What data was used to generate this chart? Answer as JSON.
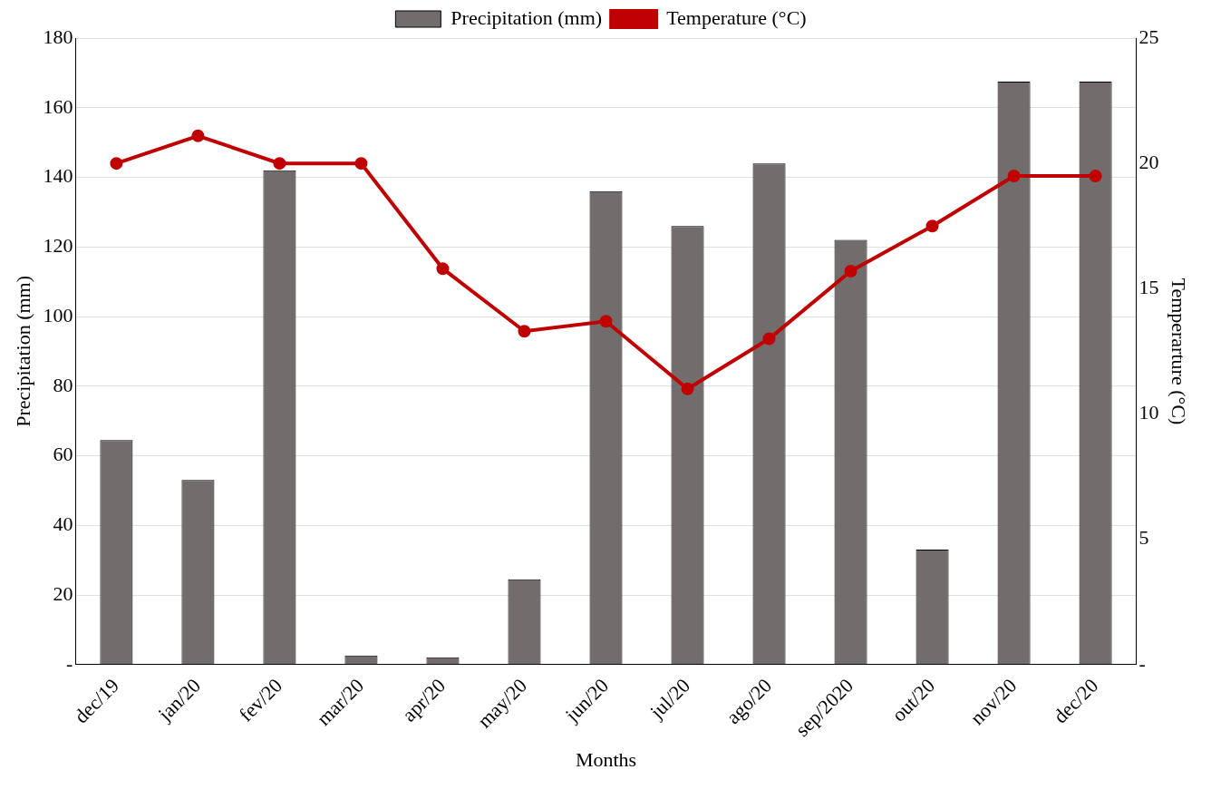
{
  "chart_data": {
    "type": "bar",
    "xlabel": "Months",
    "ylabel": "Precipitation (mm)",
    "y2label": "Temperarture (°C)",
    "categories": [
      "dec/19",
      "jan/20",
      "fev/20",
      "mar/20",
      "apr/20",
      "may/20",
      "jun/20",
      "jul/20",
      "ago/20",
      "sep/2020",
      "out/20",
      "nov/20",
      "dec/20"
    ],
    "series": [
      {
        "name": "Precipitation (mm)",
        "color": "#726d6c",
        "values": [
          64.5,
          53,
          142,
          2.6,
          2.1,
          24.5,
          136,
          126,
          144,
          122,
          33,
          167.5,
          167.5
        ]
      },
      {
        "name": "Temperature (°C)",
        "type": "line",
        "axis": "y2",
        "color": "#c00000",
        "marker": "circle",
        "values": [
          20,
          21.1,
          20,
          20,
          15.8,
          13.3,
          13.7,
          11,
          13,
          15.7,
          17.5,
          19.5,
          19.5
        ]
      }
    ],
    "ylim": [
      0,
      180
    ],
    "yticks": [
      {
        "value": 0,
        "label": "-"
      },
      20,
      40,
      60,
      80,
      100,
      120,
      140,
      160,
      180
    ],
    "y2lim": [
      0,
      25
    ],
    "y2ticks": [
      {
        "value": 0,
        "label": "-"
      },
      5,
      10,
      15,
      20,
      25
    ],
    "grid": "y",
    "legend": "top"
  }
}
